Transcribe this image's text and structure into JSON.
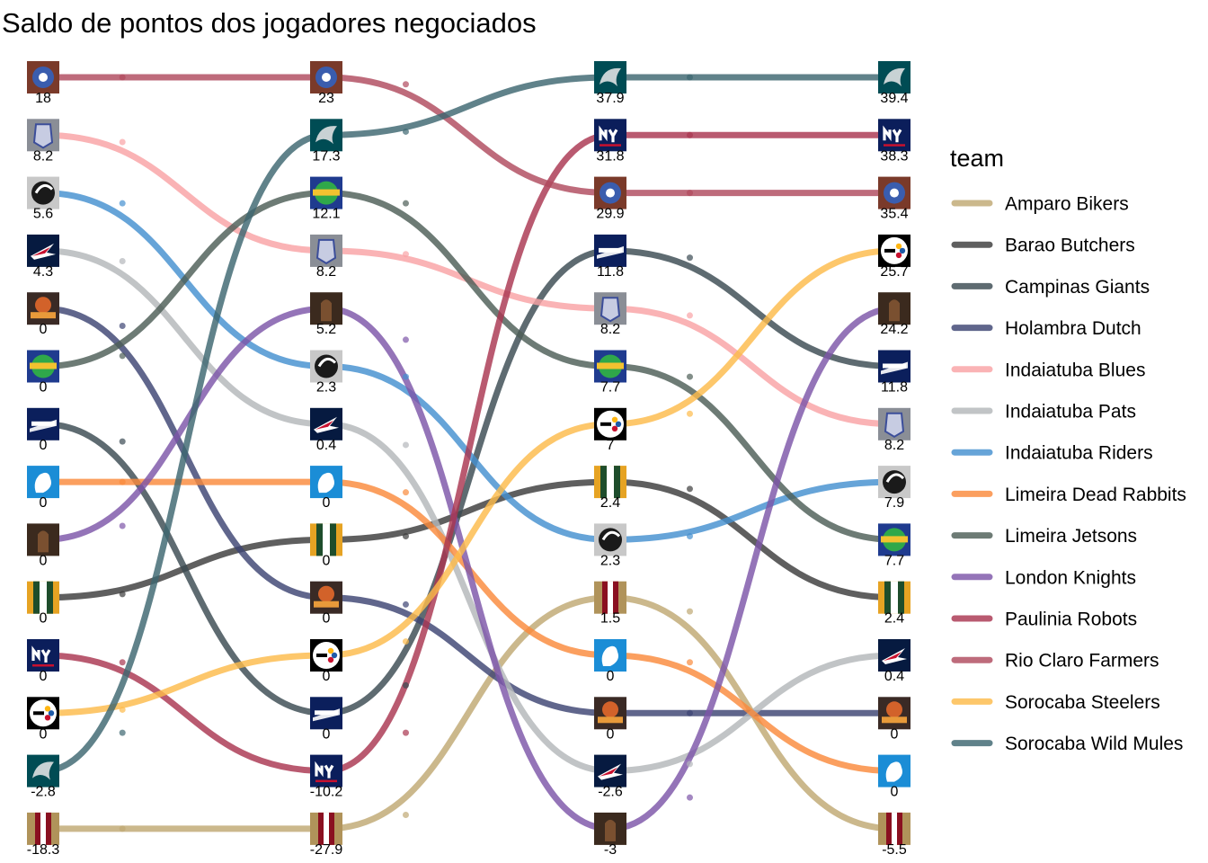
{
  "chart_data": {
    "type": "bump",
    "title": "Saldo de pontos dos jogadores negociados",
    "xlabel": "",
    "ylabel": "",
    "legend": {
      "title": "team",
      "position": "right"
    },
    "columns": 4,
    "series": [
      {
        "name": "Amparo Bikers",
        "color": "#BFA873",
        "logo": "amparo-bikers-logo",
        "ranks": [
          14,
          14,
          10,
          14
        ],
        "values": [
          "-18.3",
          "-27.9",
          "1.5",
          "-5.5"
        ]
      },
      {
        "name": "Barao Butchers",
        "color": "#3C3C3C",
        "logo": "barao-butchers-logo",
        "ranks": [
          10,
          9,
          8,
          10
        ],
        "values": [
          "0",
          "0",
          "2.4",
          "2.4"
        ]
      },
      {
        "name": "Campinas Giants",
        "color": "#3A4A52",
        "logo": "campinas-giants-logo",
        "ranks": [
          7,
          12,
          4,
          6
        ],
        "values": [
          "0",
          "0",
          "11.8",
          "11.8"
        ]
      },
      {
        "name": "Holambra Dutch",
        "color": "#3D4473",
        "logo": "holambra-dutch-logo",
        "ranks": [
          5,
          10,
          12,
          12
        ],
        "values": [
          "0",
          "0",
          "0",
          "0"
        ]
      },
      {
        "name": "Indaiatuba Blues",
        "color": "#F9A2A5",
        "logo": "indaiatuba-blues-logo",
        "ranks": [
          2,
          4,
          5,
          7
        ],
        "values": [
          "8.2",
          "8.2",
          "8.2",
          "8.2"
        ]
      },
      {
        "name": "Indaiatuba Pats",
        "color": "#B3B7BA",
        "logo": "indaiatuba-pats-logo",
        "ranks": [
          4,
          7,
          13,
          11
        ],
        "values": [
          "4.3",
          "0.4",
          "-2.6",
          "0.4"
        ]
      },
      {
        "name": "Indaiatuba Riders",
        "color": "#4490D0",
        "logo": "indaiatuba-riders-logo",
        "ranks": [
          3,
          6,
          9,
          8
        ],
        "values": [
          "5.6",
          "2.3",
          "2.3",
          "7.9"
        ]
      },
      {
        "name": "Limeira Dead Rabbits",
        "color": "#FA8A3C",
        "logo": "limeira-dead-rabbits-logo",
        "ranks": [
          8,
          8,
          11,
          13
        ],
        "values": [
          "0",
          "0",
          "0",
          "0"
        ]
      },
      {
        "name": "Limeira Jetsons",
        "color": "#4D5E57",
        "logo": "limeira-jetsons-logo",
        "ranks": [
          6,
          3,
          6,
          9
        ],
        "values": [
          "0",
          "12.1",
          "7.7",
          "7.7"
        ]
      },
      {
        "name": "London Knights",
        "color": "#7D55A8",
        "logo": "london-knights-logo",
        "ranks": [
          9,
          5,
          14,
          5
        ],
        "values": [
          "0",
          "5.2",
          "-3",
          "24.2"
        ]
      },
      {
        "name": "Paulinia Robots",
        "color": "#AA3650",
        "logo": "paulinia-robots-logo",
        "ranks": [
          11,
          13,
          2,
          2
        ],
        "values": [
          "0",
          "-10.2",
          "31.8",
          "38.3"
        ]
      },
      {
        "name": "Rio Claro Farmers",
        "color": "#B04A5E",
        "logo": "rio-claro-farmers-logo",
        "ranks": [
          1,
          1,
          3,
          3
        ],
        "values": [
          "18",
          "23",
          "29.9",
          "35.4"
        ]
      },
      {
        "name": "Sorocaba Steelers",
        "color": "#FDBB4A",
        "logo": "sorocaba-steelers-logo",
        "ranks": [
          12,
          11,
          7,
          4
        ],
        "values": [
          "0",
          "0",
          "7",
          "25.7"
        ]
      },
      {
        "name": "Sorocaba Wild Mules",
        "color": "#3D6670",
        "logo": "sorocaba-wild-mules-logo",
        "ranks": [
          13,
          2,
          1,
          1
        ],
        "values": [
          "-2.8",
          "17.3",
          "37.9",
          "39.4"
        ]
      }
    ]
  }
}
